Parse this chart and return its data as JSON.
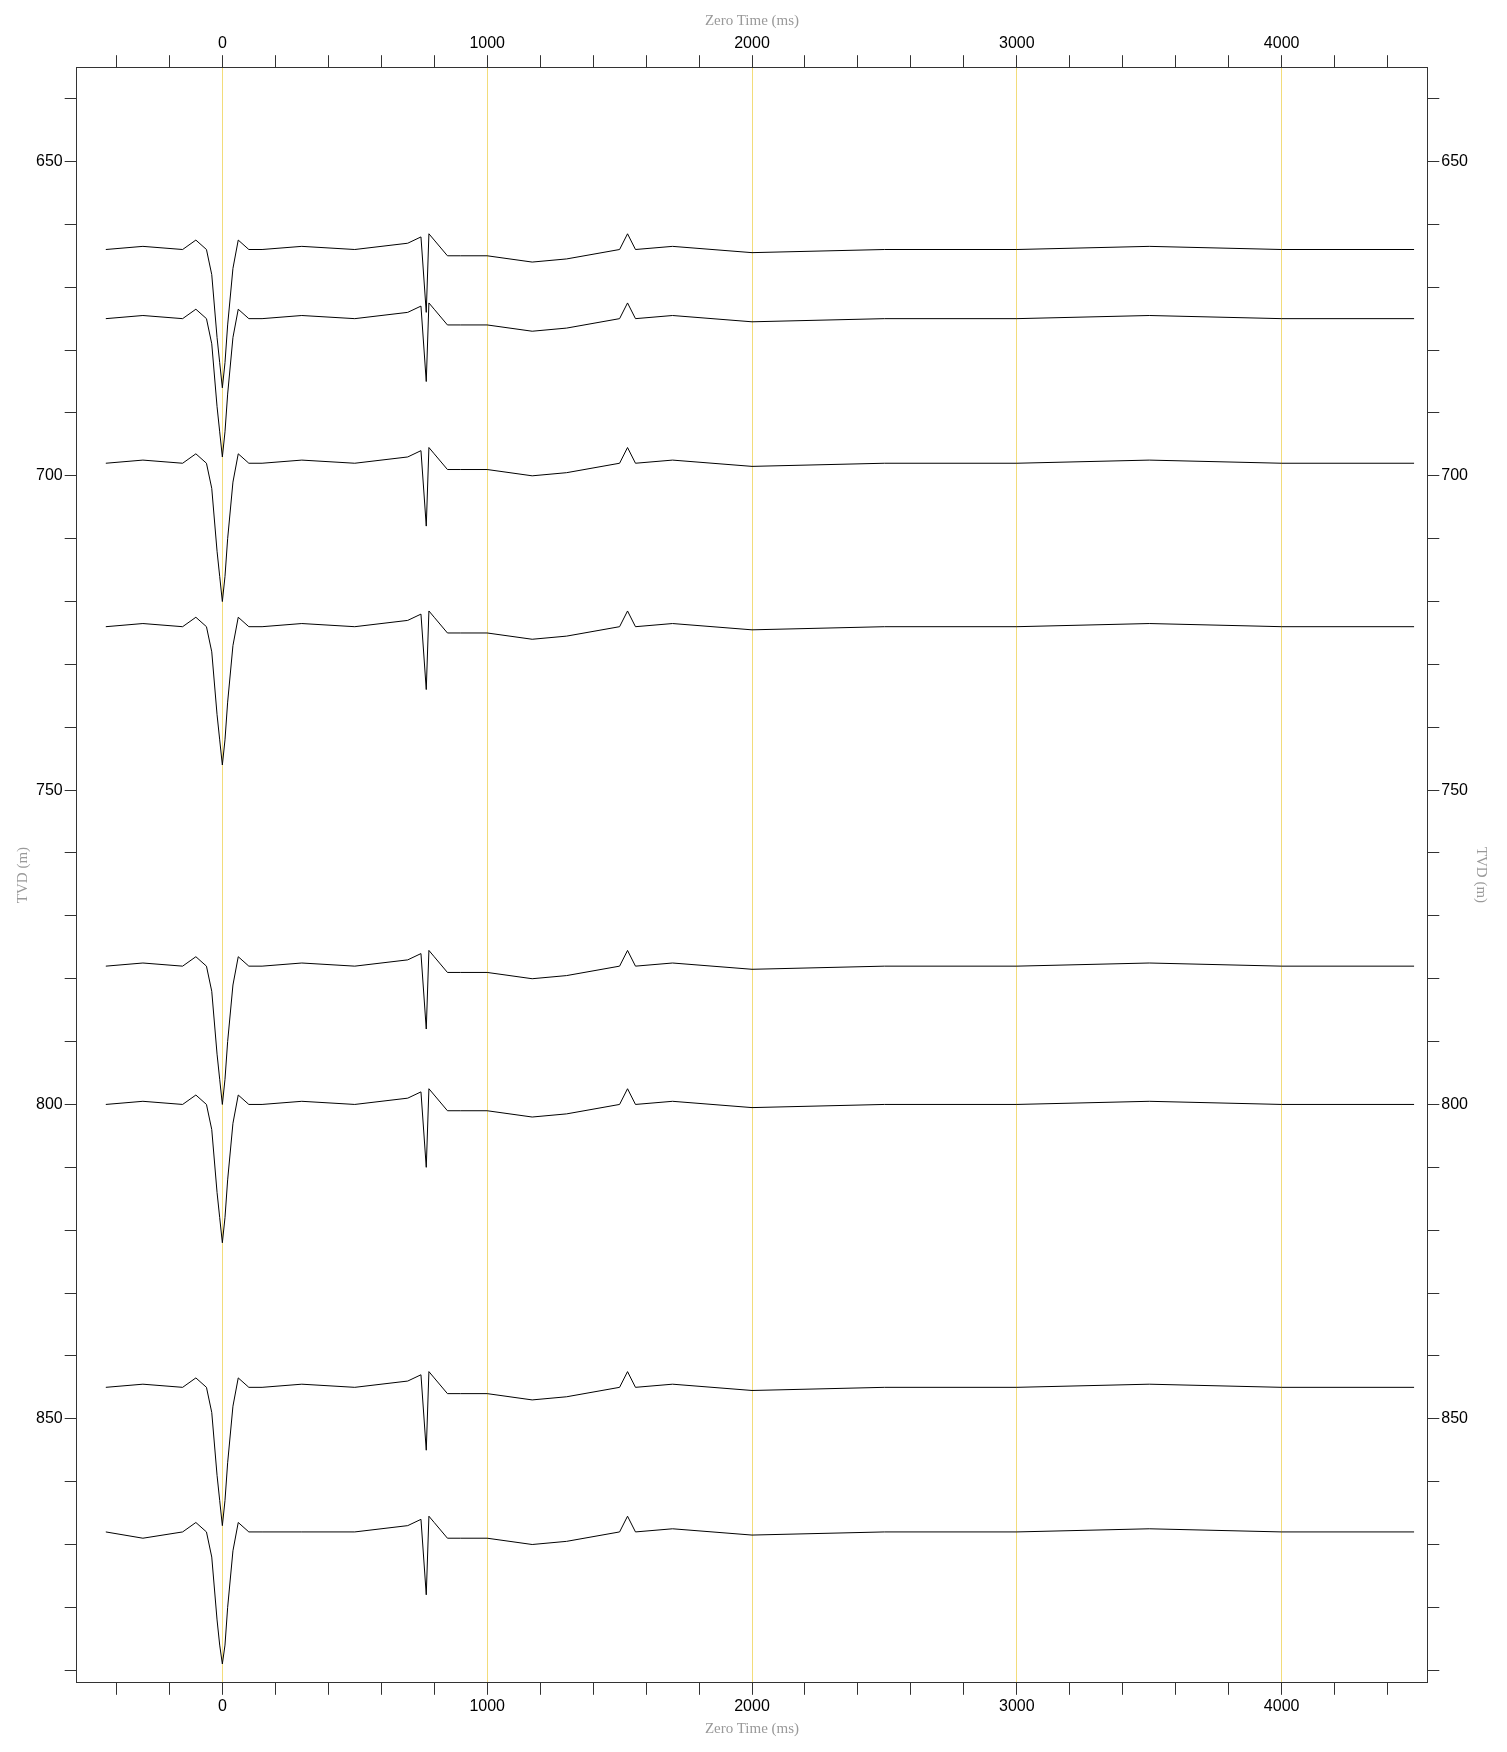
{
  "chart_data": {
    "type": "line",
    "xlabel": "Zero Time (ms)",
    "x2label": "Zero Time (ms)",
    "ylabel": "TVD (m)",
    "y2label": "TVD (m)",
    "xlim": [
      -550,
      4550
    ],
    "x2lim": [
      -550,
      4550
    ],
    "xticks": [
      {
        "value": -400,
        "label": null
      },
      {
        "value": -200,
        "label": null
      },
      0,
      {
        "value": 200,
        "label": null
      },
      {
        "value": 400,
        "label": null
      },
      {
        "value": 600,
        "label": null
      },
      {
        "value": 800,
        "label": null
      },
      1000,
      {
        "value": 1200,
        "label": null
      },
      {
        "value": 1400,
        "label": null
      },
      {
        "value": 1600,
        "label": null
      },
      {
        "value": 1800,
        "label": null
      },
      2000,
      {
        "value": 2200,
        "label": null
      },
      {
        "value": 2400,
        "label": null
      },
      {
        "value": 2600,
        "label": null
      },
      {
        "value": 2800,
        "label": null
      },
      3000,
      {
        "value": 3200,
        "label": null
      },
      {
        "value": 3400,
        "label": null
      },
      {
        "value": 3600,
        "label": null
      },
      {
        "value": 3800,
        "label": null
      },
      4000,
      {
        "value": 4200,
        "label": null
      },
      {
        "value": 4400,
        "label": null
      }
    ],
    "x2ticks": [
      {
        "value": -400,
        "label": null
      },
      {
        "value": -200,
        "label": null
      },
      0,
      {
        "value": 200,
        "label": null
      },
      {
        "value": 400,
        "label": null
      },
      {
        "value": 600,
        "label": null
      },
      {
        "value": 800,
        "label": null
      },
      1000,
      {
        "value": 1200,
        "label": null
      },
      {
        "value": 1400,
        "label": null
      },
      {
        "value": 1600,
        "label": null
      },
      {
        "value": 1800,
        "label": null
      },
      2000,
      {
        "value": 2200,
        "label": null
      },
      {
        "value": 2400,
        "label": null
      },
      {
        "value": 2600,
        "label": null
      },
      {
        "value": 2800,
        "label": null
      },
      3000,
      {
        "value": 3200,
        "label": null
      },
      {
        "value": 3400,
        "label": null
      },
      {
        "value": 3600,
        "label": null
      },
      {
        "value": 3800,
        "label": null
      },
      4000,
      {
        "value": 4200,
        "label": null
      },
      {
        "value": 4400,
        "label": null
      }
    ],
    "ylim": [
      892,
      635
    ],
    "y2lim": [
      892,
      635
    ],
    "yticks": [
      {
        "value": 640,
        "label": null
      },
      650,
      {
        "value": 660,
        "label": null
      },
      {
        "value": 670,
        "label": null
      },
      {
        "value": 680,
        "label": null
      },
      {
        "value": 690,
        "label": null
      },
      700,
      {
        "value": 710,
        "label": null
      },
      {
        "value": 720,
        "label": null
      },
      {
        "value": 730,
        "label": null
      },
      {
        "value": 740,
        "label": null
      },
      750,
      {
        "value": 760,
        "label": null
      },
      {
        "value": 770,
        "label": null
      },
      {
        "value": 780,
        "label": null
      },
      {
        "value": 790,
        "label": null
      },
      800,
      {
        "value": 810,
        "label": null
      },
      {
        "value": 820,
        "label": null
      },
      {
        "value": 830,
        "label": null
      },
      {
        "value": 840,
        "label": null
      },
      850,
      {
        "value": 860,
        "label": null
      },
      {
        "value": 870,
        "label": null
      },
      {
        "value": 880,
        "label": null
      },
      {
        "value": 890,
        "label": null
      }
    ],
    "y2ticks": [
      {
        "value": 640,
        "label": null
      },
      650,
      {
        "value": 660,
        "label": null
      },
      {
        "value": 670,
        "label": null
      },
      {
        "value": 680,
        "label": null
      },
      {
        "value": 690,
        "label": null
      },
      700,
      {
        "value": 710,
        "label": null
      },
      {
        "value": 720,
        "label": null
      },
      {
        "value": 730,
        "label": null
      },
      {
        "value": 740,
        "label": null
      },
      750,
      {
        "value": 760,
        "label": null
      },
      {
        "value": 770,
        "label": null
      },
      {
        "value": 780,
        "label": null
      },
      {
        "value": 790,
        "label": null
      },
      800,
      {
        "value": 810,
        "label": null
      },
      {
        "value": 820,
        "label": null
      },
      {
        "value": 830,
        "label": null
      },
      {
        "value": 840,
        "label": null
      },
      850,
      {
        "value": 860,
        "label": null
      },
      {
        "value": 870,
        "label": null
      },
      {
        "value": 880,
        "label": null
      },
      {
        "value": 890,
        "label": null
      }
    ],
    "grid": "x",
    "legend": false,
    "marker": "none",
    "line_style": "solid",
    "x": [
      -440,
      -300,
      -150,
      -100,
      -60,
      -40,
      -20,
      -10,
      0,
      10,
      20,
      40,
      60,
      100,
      150,
      300,
      500,
      700,
      750,
      770,
      780,
      800,
      850,
      900,
      1000,
      1170,
      1300,
      1500,
      1530,
      1560,
      1700,
      2000,
      2500,
      3000,
      3500,
      4000,
      4500
    ],
    "series": [
      {
        "color": "#000000",
        "values": [
          664,
          663.5,
          664,
          662.5,
          664,
          668,
          678,
          682,
          686,
          682,
          676,
          667,
          662.5,
          664,
          664,
          663.5,
          664,
          663,
          662,
          674,
          661.5,
          662.5,
          665,
          665,
          665,
          666,
          665.5,
          664,
          661.5,
          664,
          663.5,
          664.5,
          664,
          664,
          663.5,
          664,
          664
        ]
      },
      {
        "color": "#000000",
        "values": [
          675,
          674.5,
          675,
          673.5,
          675,
          679,
          689,
          693,
          697,
          693,
          687,
          678,
          673.5,
          675,
          675,
          674.5,
          675,
          674,
          673,
          685,
          672.5,
          673.5,
          676,
          676,
          676,
          677,
          676.5,
          675,
          672.5,
          675,
          674.5,
          675.5,
          675,
          675,
          674.5,
          675,
          675
        ]
      },
      {
        "color": "#000000",
        "values": [
          698,
          697.5,
          698,
          696.5,
          698,
          702,
          712,
          716,
          720,
          716,
          710,
          701,
          696.5,
          698,
          698,
          697.5,
          698,
          697,
          696,
          708,
          695.5,
          696.5,
          699,
          699,
          699,
          700,
          699.5,
          698,
          695.5,
          698,
          697.5,
          698.5,
          698,
          698,
          697.5,
          698,
          698
        ]
      },
      {
        "color": "#000000",
        "values": [
          724,
          723.5,
          724,
          722.5,
          724,
          728,
          738,
          742,
          746,
          742,
          736,
          727,
          722.5,
          724,
          724,
          723.5,
          724,
          723,
          722,
          734,
          721.5,
          722.5,
          725,
          725,
          725,
          726,
          725.5,
          724,
          721.5,
          724,
          723.5,
          724.5,
          724,
          724,
          723.5,
          724,
          724
        ]
      },
      {
        "color": "#000000",
        "values": [
          778,
          777.5,
          778,
          776.5,
          778,
          782,
          792,
          796,
          800,
          796,
          790,
          781,
          776.5,
          778,
          778,
          777.5,
          778,
          777,
          776,
          788,
          775.5,
          776.5,
          779,
          779,
          779,
          780,
          779.5,
          778,
          775.5,
          778,
          777.5,
          778.5,
          778,
          778,
          777.5,
          778,
          778
        ]
      },
      {
        "color": "#000000",
        "values": [
          800,
          799.5,
          800,
          798.5,
          800,
          804,
          814,
          818,
          822,
          818,
          812,
          803,
          798.5,
          800,
          800,
          799.5,
          800,
          799,
          798,
          810,
          797.5,
          798.5,
          801,
          801,
          801,
          802,
          801.5,
          800,
          797.5,
          800,
          799.5,
          800.5,
          800,
          800,
          799.5,
          800,
          800
        ]
      },
      {
        "color": "#000000",
        "values": [
          845,
          844.5,
          845,
          843.5,
          845,
          849,
          859,
          863,
          867,
          863,
          857,
          848,
          843.5,
          845,
          845,
          844.5,
          845,
          844,
          843,
          855,
          842.5,
          843.5,
          846,
          846,
          846,
          847,
          846.5,
          845,
          842.5,
          845,
          844.5,
          845.5,
          845,
          845,
          844.5,
          845,
          845
        ]
      },
      {
        "color": "#000000",
        "values": [
          868,
          869,
          868,
          866.5,
          868,
          872,
          882,
          886,
          889,
          886,
          880,
          871,
          866.5,
          868,
          868,
          868,
          868,
          867,
          866,
          878,
          865.5,
          866.5,
          869,
          869,
          869,
          870,
          869.5,
          868,
          865.5,
          868,
          867.5,
          868.5,
          868,
          868,
          867.5,
          868,
          868
        ]
      }
    ]
  }
}
